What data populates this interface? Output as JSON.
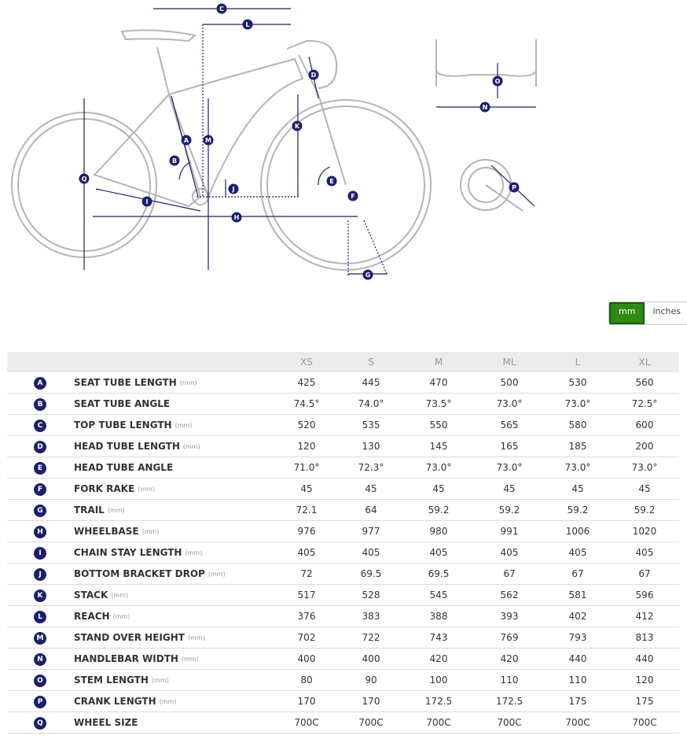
{
  "unit_toggle": {
    "options": [
      "mm",
      "inches"
    ],
    "selected": "mm"
  },
  "table": {
    "columns": [
      "XS",
      "S",
      "M",
      "ML",
      "L",
      "XL"
    ],
    "rows": [
      {
        "letter": "A",
        "name": "SEAT TUBE LENGTH",
        "unit": "(mm)",
        "values": [
          425,
          445,
          470,
          500,
          530,
          560
        ]
      },
      {
        "letter": "B",
        "name": "SEAT TUBE ANGLE",
        "values": [
          "74.5°",
          "74.0°",
          "73.5°",
          "73.0°",
          "73.0°",
          "72.5°"
        ]
      },
      {
        "letter": "C",
        "name": "TOP TUBE LENGTH",
        "unit": "(mm)",
        "values": [
          520,
          535,
          550,
          565,
          580,
          600
        ]
      },
      {
        "letter": "D",
        "name": "HEAD TUBE LENGTH",
        "unit": "(mm)",
        "values": [
          120,
          130,
          145,
          165,
          185,
          200
        ]
      },
      {
        "letter": "E",
        "name": "HEAD TUBE ANGLE",
        "values": [
          "71.0°",
          "72.3°",
          "73.0°",
          "73.0°",
          "73.0°",
          "73.0°"
        ]
      },
      {
        "letter": "F",
        "name": "FORK RAKE",
        "unit": "(mm)",
        "values": [
          45,
          45,
          45,
          45,
          45,
          45
        ]
      },
      {
        "letter": "G",
        "name": "TRAIL",
        "unit": "(mm)",
        "values": [
          72.1,
          64,
          59.2,
          59.2,
          59.2,
          59.2
        ]
      },
      {
        "letter": "H",
        "name": "WHEELBASE",
        "unit": "(mm)",
        "values": [
          976,
          977,
          980,
          991,
          1006,
          1020
        ]
      },
      {
        "letter": "I",
        "name": "CHAIN STAY LENGTH",
        "unit": "(mm)",
        "values": [
          405,
          405,
          405,
          405,
          405,
          405
        ]
      },
      {
        "letter": "J",
        "name": "BOTTOM BRACKET DROP",
        "unit": "(mm)",
        "values": [
          72,
          69.5,
          69.5,
          67,
          67,
          67
        ]
      },
      {
        "letter": "K",
        "name": "STACK",
        "unit": "(mm)",
        "values": [
          517,
          528,
          545,
          562,
          581,
          596
        ]
      },
      {
        "letter": "L",
        "name": "REACH",
        "unit": "(mm)",
        "values": [
          376,
          383,
          388,
          393,
          402,
          412
        ]
      },
      {
        "letter": "M",
        "name": "STAND OVER HEIGHT",
        "unit": "(mm)",
        "values": [
          702,
          722,
          743,
          769,
          793,
          813
        ]
      },
      {
        "letter": "N",
        "name": "HANDLEBAR WIDTH",
        "unit": "(mm)",
        "values": [
          400,
          400,
          420,
          420,
          440,
          440
        ]
      },
      {
        "letter": "O",
        "name": "STEM LENGTH",
        "unit": "(mm)",
        "values": [
          80,
          90,
          100,
          110,
          110,
          120
        ]
      },
      {
        "letter": "P",
        "name": "CRANK LENGTH",
        "unit": "(mm)",
        "values": [
          170,
          170,
          172.5,
          172.5,
          175,
          175
        ]
      },
      {
        "letter": "Q",
        "name": "WHEEL SIZE",
        "values": [
          "700C",
          "700C",
          "700C",
          "700C",
          "700C",
          "700C"
        ]
      }
    ]
  }
}
